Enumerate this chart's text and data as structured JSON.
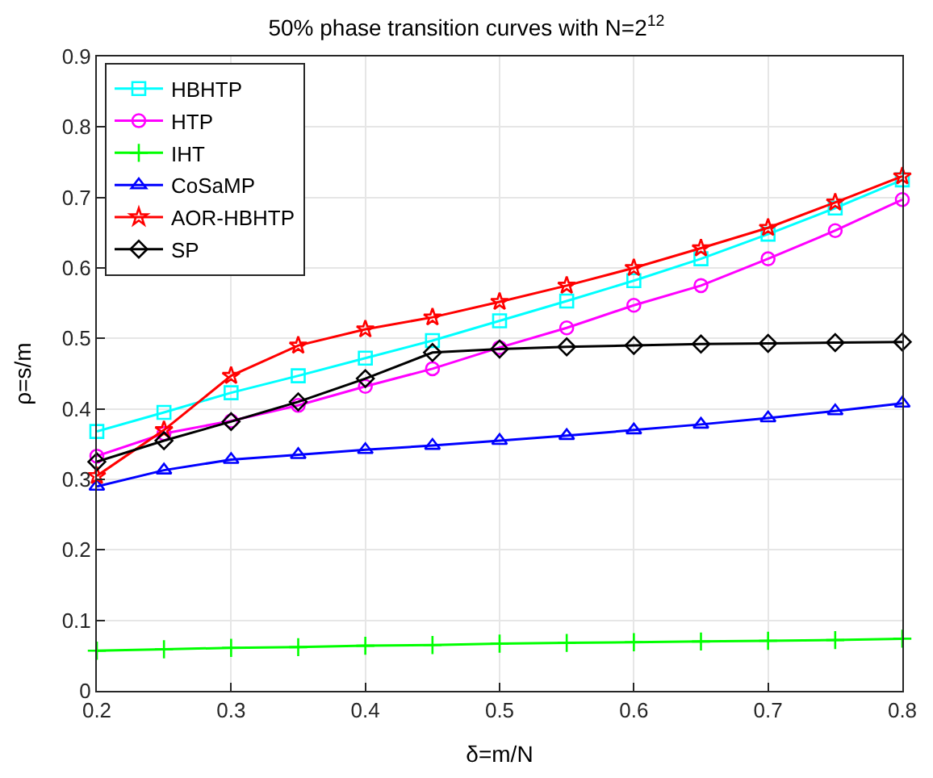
{
  "chart_data": {
    "type": "line",
    "title": "50% phase transition curves with N=2$^{12}$",
    "xlabel": "δ=m/N",
    "ylabel": "ρ=s/m",
    "x": [
      0.2,
      0.25,
      0.3,
      0.35,
      0.4,
      0.45,
      0.5,
      0.55,
      0.6,
      0.65,
      0.7,
      0.75,
      0.8
    ],
    "series": [
      {
        "name": "HBHTP",
        "color": "#00ffff",
        "marker": "square",
        "values": [
          0.368,
          0.395,
          0.423,
          0.447,
          0.472,
          0.497,
          0.525,
          0.553,
          0.582,
          0.613,
          0.648,
          0.685,
          0.725
        ]
      },
      {
        "name": "HTP",
        "color": "#ff00ff",
        "marker": "circle",
        "values": [
          0.333,
          0.365,
          0.383,
          0.405,
          0.432,
          0.457,
          0.487,
          0.515,
          0.547,
          0.575,
          0.613,
          0.653,
          0.697
        ]
      },
      {
        "name": "IHT",
        "color": "#00ff00",
        "marker": "cross",
        "values": [
          0.057,
          0.059,
          0.061,
          0.062,
          0.064,
          0.065,
          0.067,
          0.068,
          0.069,
          0.07,
          0.071,
          0.072,
          0.074
        ]
      },
      {
        "name": "CoSaMP",
        "color": "#0000ff",
        "marker": "triangle",
        "values": [
          0.29,
          0.313,
          0.328,
          0.335,
          0.342,
          0.348,
          0.355,
          0.362,
          0.37,
          0.378,
          0.387,
          0.397,
          0.408
        ]
      },
      {
        "name": "AOR-HBHTP",
        "color": "#ff0000",
        "marker": "star",
        "values": [
          0.305,
          0.37,
          0.447,
          0.49,
          0.513,
          0.53,
          0.552,
          0.575,
          0.6,
          0.628,
          0.657,
          0.693,
          0.73
        ]
      },
      {
        "name": "SP",
        "color": "#000000",
        "marker": "diamond",
        "values": [
          0.325,
          0.355,
          0.382,
          0.41,
          0.443,
          0.48,
          0.485,
          0.488,
          0.49,
          0.492,
          0.493,
          0.494,
          0.495
        ]
      }
    ],
    "xlim": [
      0.2,
      0.8
    ],
    "xticks": [
      0.2,
      0.3,
      0.4,
      0.5,
      0.6,
      0.7,
      0.8
    ],
    "ylim": [
      0,
      0.9
    ],
    "yticks": [
      0,
      0.1,
      0.2,
      0.3,
      0.4,
      0.5,
      0.6,
      0.7,
      0.8,
      0.9
    ],
    "grid": true,
    "legend": "top left",
    "line_style": "solid"
  }
}
